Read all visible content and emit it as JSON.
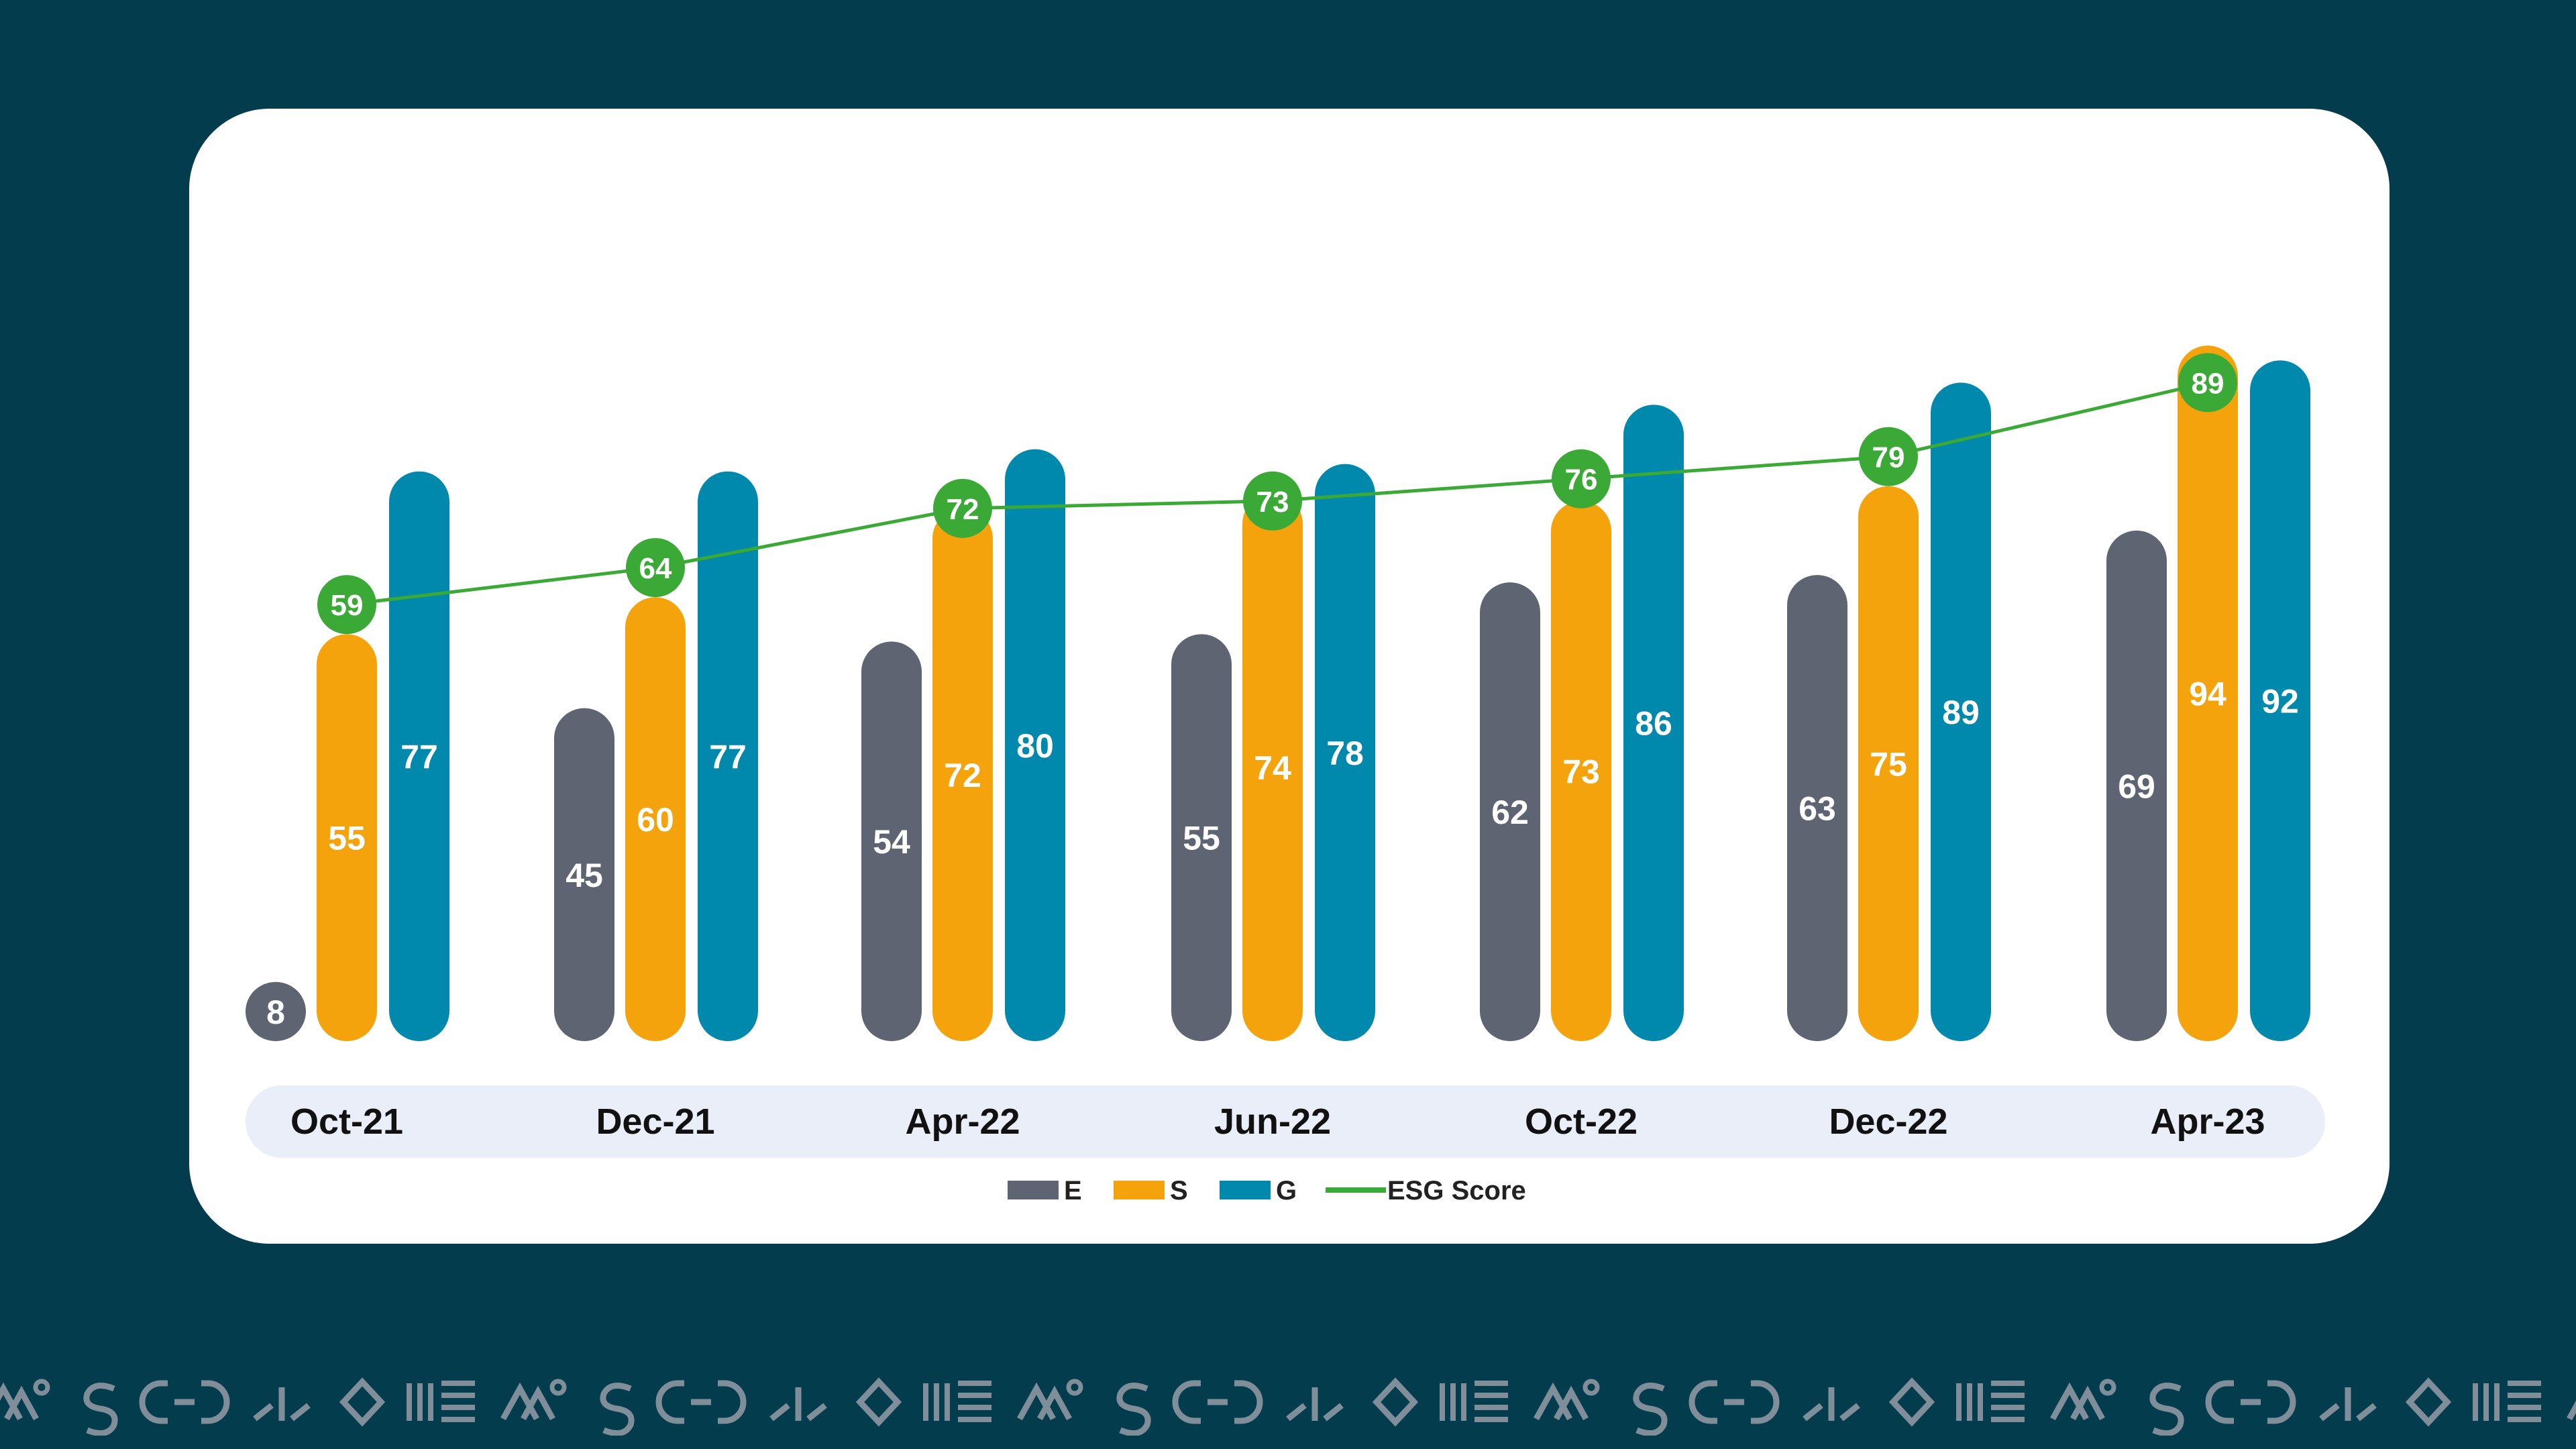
{
  "chart_data": {
    "type": "bar",
    "categories": [
      "Oct-21",
      "Dec-21",
      "Apr-22",
      "Jun-22",
      "Oct-22",
      "Dec-22",
      "Apr-23"
    ],
    "series": [
      {
        "name": "E",
        "type": "bar",
        "color": "#5f6473",
        "values": [
          8,
          45,
          54,
          55,
          62,
          63,
          69
        ]
      },
      {
        "name": "S",
        "type": "bar",
        "color": "#f5a30c",
        "values": [
          55,
          60,
          72,
          74,
          73,
          75,
          94
        ]
      },
      {
        "name": "G",
        "type": "bar",
        "color": "#0088ad",
        "values": [
          77,
          77,
          80,
          78,
          86,
          89,
          92
        ]
      },
      {
        "name": "ESG Score",
        "type": "line",
        "color": "#3aa935",
        "values": [
          59,
          64,
          72,
          73,
          76,
          79,
          89
        ]
      }
    ],
    "ylim": [
      0,
      100
    ],
    "grid": false,
    "legend_position": "bottom-center",
    "title": "",
    "xlabel": "",
    "ylabel": ""
  },
  "colors": {
    "background": "#033c4d",
    "card": "#ffffff",
    "category_band": "#e9eef9",
    "marker_label": "#ffffff",
    "category_text": "#111111",
    "pattern": "#7f8e99"
  }
}
